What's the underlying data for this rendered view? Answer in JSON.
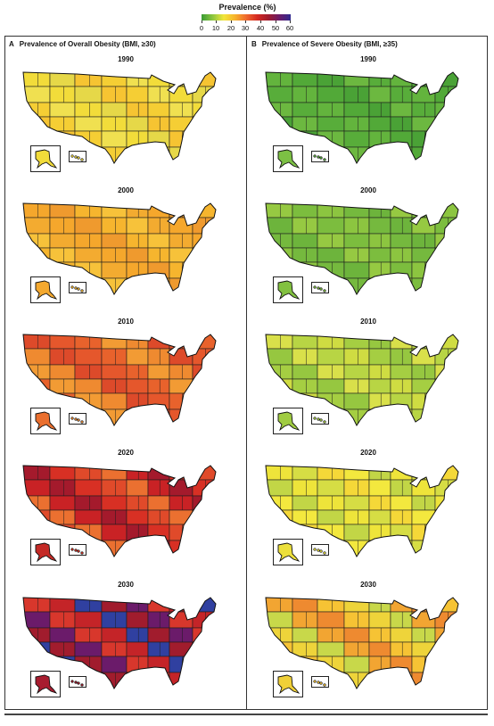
{
  "legend": {
    "title": "Prevalence (%)",
    "ticks": [
      "0",
      "10",
      "20",
      "30",
      "40",
      "50",
      "60"
    ],
    "colors": [
      "#3a9b34",
      "#8cc63f",
      "#f2e63a",
      "#f7b32b",
      "#ef6a2e",
      "#d52a22",
      "#a01c2f",
      "#6a1b6a",
      "#2f2a8f"
    ]
  },
  "panels": [
    {
      "letter": "A",
      "title": "Prevalence of Overall Obesity (BMI, ≥30)",
      "maps": [
        {
          "year": "1990",
          "base": "#f2dc3a",
          "pal": [
            "#f2dc3a",
            "#f5ce34",
            "#e6d848",
            "#f0e050",
            "#f6c432"
          ],
          "alaska": "#f2dc3a"
        },
        {
          "year": "2000",
          "base": "#f6b52e",
          "pal": [
            "#f6b52e",
            "#f5a72c",
            "#f7c23a",
            "#ef9a2e",
            "#f3ab30"
          ],
          "alaska": "#f4a92f"
        },
        {
          "year": "2010",
          "base": "#ef8a30",
          "pal": [
            "#ef8a30",
            "#e8622c",
            "#dd4a2a",
            "#f29b34",
            "#e5572c"
          ],
          "alaska": "#ea6f2e"
        },
        {
          "year": "2020",
          "base": "#d83024",
          "pal": [
            "#d83024",
            "#c92225",
            "#e04a2a",
            "#a41a2c",
            "#eb7030"
          ],
          "alaska": "#c42a26"
        },
        {
          "year": "2030",
          "base": "#a11c2d",
          "pal": [
            "#a11c2d",
            "#c42428",
            "#6b1b6a",
            "#3040a0",
            "#d8372c"
          ],
          "alaska": "#a81c2f"
        }
      ]
    },
    {
      "letter": "B",
      "title": "Prevalence of Severe Obesity (BMI, ≥35)",
      "maps": [
        {
          "year": "1990",
          "base": "#58ad3a",
          "pal": [
            "#58ad3a",
            "#4aa236",
            "#63b43d",
            "#6cb840",
            "#52a938"
          ],
          "alaska": "#7cc044"
        },
        {
          "year": "2000",
          "base": "#7cbd3e",
          "pal": [
            "#7cbd3e",
            "#6db43c",
            "#8cc540",
            "#96c942",
            "#75b93e"
          ],
          "alaska": "#82c140"
        },
        {
          "year": "2010",
          "base": "#a5ce42",
          "pal": [
            "#a5ce42",
            "#b8d544",
            "#96c740",
            "#cfdc42",
            "#d9e04a"
          ],
          "alaska": "#a0cc42"
        },
        {
          "year": "2020",
          "base": "#eee43a",
          "pal": [
            "#eee43a",
            "#f3e83e",
            "#d6dd44",
            "#c2d646",
            "#f5d838"
          ],
          "alaska": "#ece03c"
        },
        {
          "year": "2030",
          "base": "#f6c334",
          "pal": [
            "#f6c334",
            "#f2a532",
            "#eed43a",
            "#ee8a30",
            "#c8d84a"
          ],
          "alaska": "#f0d038"
        }
      ]
    }
  ]
}
